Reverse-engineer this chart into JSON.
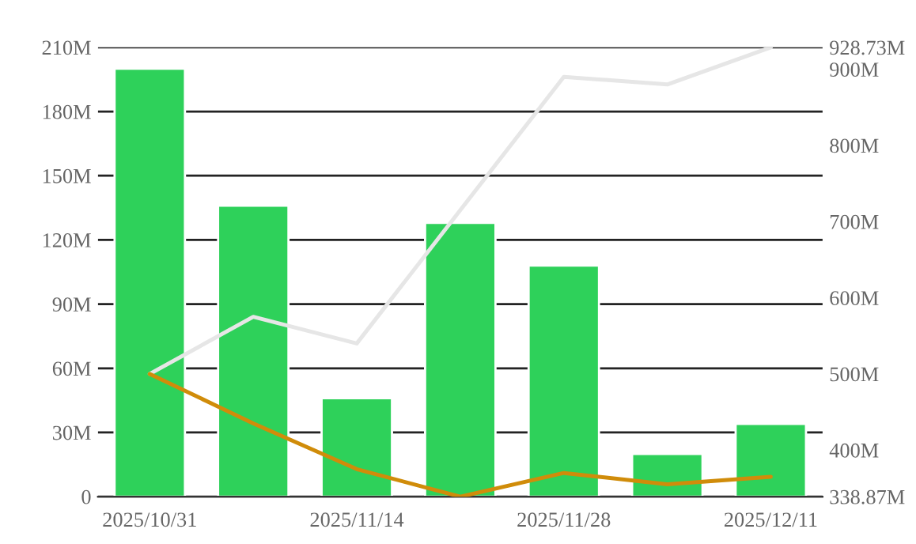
{
  "chart_data": {
    "type": "bar",
    "categories": [
      "2025/10/31",
      null,
      "2025/11/14",
      null,
      "2025/11/28",
      null,
      "2025/12/11"
    ],
    "series": [
      {
        "color": "#2ed15a",
        "values": [
          200,
          136,
          46,
          128,
          108,
          20,
          34
        ]
      },
      {
        "type": "line",
        "axis": "y2",
        "color": "#e6e6e6",
        "values": [
          500,
          575,
          540,
          715,
          890,
          880,
          928.73
        ]
      },
      {
        "type": "line",
        "axis": "y2",
        "color": "#d08c0a",
        "values": [
          500,
          435,
          375,
          338.87,
          370,
          355,
          365
        ]
      }
    ],
    "ylim": [
      0,
      210
    ],
    "yticks": [
      0,
      {
        "value": 30,
        "label": "30M"
      },
      {
        "value": 60,
        "label": "60M"
      },
      {
        "value": 90,
        "label": "90M"
      },
      {
        "value": 120,
        "label": "120M"
      },
      {
        "value": 150,
        "label": "150M"
      },
      {
        "value": 180,
        "label": "180M"
      },
      {
        "value": 210,
        "label": "210M"
      }
    ],
    "y2lim": [
      338.87,
      928.73
    ],
    "y2ticks": [
      {
        "value": 338.87,
        "label": "338.87M"
      },
      {
        "value": 400,
        "label": "400M"
      },
      {
        "value": 500,
        "label": "500M"
      },
      {
        "value": 600,
        "label": "600M"
      },
      {
        "value": 700,
        "label": "700M"
      },
      {
        "value": 800,
        "label": "800M"
      },
      {
        "value": 900,
        "label": "900M"
      },
      {
        "value": 928.73,
        "label": "928.73M"
      }
    ],
    "grid": "y",
    "marker": "none",
    "line_style": "solid"
  }
}
